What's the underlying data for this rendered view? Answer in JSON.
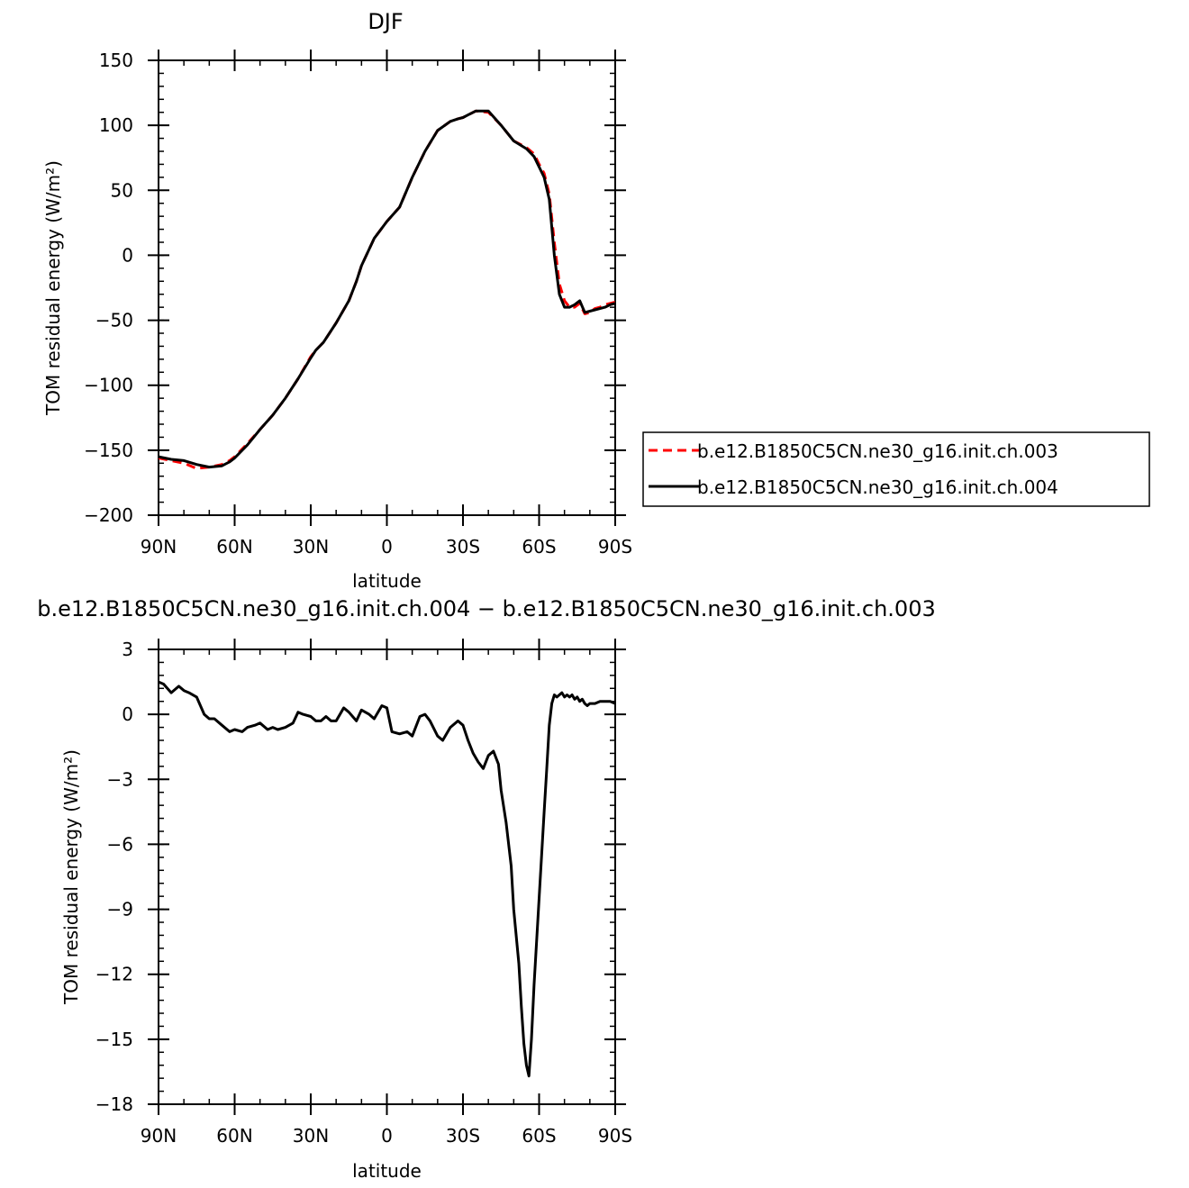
{
  "chart_data": [
    {
      "type": "line",
      "title": "DJF",
      "xlabel": "latitude",
      "ylabel": "TOM residual energy (W/m²)",
      "xlim": [
        90,
        -90
      ],
      "ylim": [
        -200,
        150
      ],
      "x_ticks": [
        {
          "value": 90,
          "label": "90N"
        },
        {
          "value": 60,
          "label": "60N"
        },
        {
          "value": 30,
          "label": "30N"
        },
        {
          "value": 0,
          "label": "0"
        },
        {
          "value": -30,
          "label": "30S"
        },
        {
          "value": -60,
          "label": "60S"
        },
        {
          "value": -90,
          "label": "90S"
        }
      ],
      "y_ticks": [
        {
          "value": 150,
          "label": "150"
        },
        {
          "value": 100,
          "label": "100"
        },
        {
          "value": 50,
          "label": "50"
        },
        {
          "value": 0,
          "label": "0"
        },
        {
          "value": -50,
          "label": "−50"
        },
        {
          "value": -100,
          "label": "−100"
        },
        {
          "value": -150,
          "label": "−150"
        },
        {
          "value": -200,
          "label": "−200"
        }
      ],
      "legend_position": "right",
      "series": [
        {
          "name": "b.e12.B1850C5CN.ne30_g16.init.ch.003",
          "color": "#ff0000",
          "dash": "dashed",
          "x": [
            90,
            85,
            80,
            75,
            70,
            65,
            62,
            60,
            55,
            50,
            45,
            40,
            35,
            30,
            28,
            25,
            20,
            15,
            12,
            10,
            5,
            0,
            -5,
            -10,
            -15,
            -20,
            -25,
            -28,
            -30,
            -32,
            -35,
            -40,
            -45,
            -50,
            -55,
            -58,
            -60,
            -62,
            -64,
            -66,
            -68,
            -70,
            -72,
            -74,
            -76,
            -78,
            -80,
            -82,
            -84,
            -86,
            -88,
            -90
          ],
          "y": [
            -156,
            -158,
            -160,
            -164,
            -163,
            -161,
            -158,
            -155,
            -145,
            -134,
            -123,
            -110,
            -95,
            -78,
            -73,
            -67,
            -52,
            -35,
            -20,
            -8,
            13,
            26,
            37,
            60,
            80,
            96,
            103,
            105,
            106,
            108,
            111,
            110,
            100,
            88,
            83,
            78,
            70,
            63,
            47,
            10,
            -22,
            -35,
            -40,
            -40,
            -37,
            -45,
            -44,
            -41,
            -40,
            -38,
            -37,
            -36
          ]
        },
        {
          "name": "b.e12.B1850C5CN.ne30_g16.init.ch.004",
          "color": "#000000",
          "dash": "solid",
          "x": [
            90,
            85,
            80,
            75,
            70,
            65,
            62,
            60,
            55,
            50,
            45,
            40,
            35,
            30,
            28,
            25,
            20,
            15,
            12,
            10,
            5,
            0,
            -5,
            -10,
            -15,
            -20,
            -25,
            -28,
            -30,
            -32,
            -35,
            -40,
            -45,
            -50,
            -55,
            -58,
            -60,
            -62,
            -64,
            -66,
            -68,
            -70,
            -72,
            -74,
            -76,
            -78,
            -80,
            -82,
            -84,
            -86,
            -88,
            -90
          ],
          "y": [
            -155,
            -157,
            -158,
            -161,
            -163,
            -162,
            -159,
            -156,
            -146,
            -134,
            -123,
            -110,
            -95,
            -79,
            -73,
            -67,
            -52,
            -35,
            -20,
            -8,
            13,
            26,
            37,
            60,
            80,
            96,
            103,
            105,
            106,
            108,
            111,
            111,
            100,
            88,
            82,
            76,
            68,
            60,
            43,
            0,
            -30,
            -40,
            -40,
            -38,
            -35,
            -44,
            -43,
            -42,
            -41,
            -40,
            -38,
            -37
          ]
        }
      ]
    },
    {
      "type": "line",
      "title": "b.e12.B1850C5CN.ne30_g16.init.ch.004 − b.e12.B1850C5CN.ne30_g16.init.ch.003",
      "xlabel": "latitude",
      "ylabel": "TOM residual energy (W/m²)",
      "xlim": [
        90,
        -90
      ],
      "ylim": [
        -18,
        3
      ],
      "x_ticks": [
        {
          "value": 90,
          "label": "90N"
        },
        {
          "value": 60,
          "label": "60N"
        },
        {
          "value": 30,
          "label": "30N"
        },
        {
          "value": 0,
          "label": "0"
        },
        {
          "value": -30,
          "label": "30S"
        },
        {
          "value": -60,
          "label": "60S"
        },
        {
          "value": -90,
          "label": "90S"
        }
      ],
      "y_ticks": [
        {
          "value": 3,
          "label": "3"
        },
        {
          "value": 0,
          "label": "0"
        },
        {
          "value": -3,
          "label": "−3"
        },
        {
          "value": -6,
          "label": "−6"
        },
        {
          "value": -9,
          "label": "−9"
        },
        {
          "value": -12,
          "label": "−12"
        },
        {
          "value": -15,
          "label": "−15"
        },
        {
          "value": -18,
          "label": "−18"
        }
      ],
      "series": [
        {
          "color": "#000000",
          "dash": "solid",
          "x": [
            90,
            88,
            85,
            82,
            80,
            78,
            75,
            72,
            70,
            68,
            65,
            62,
            60,
            57,
            55,
            52,
            50,
            47,
            45,
            43,
            40,
            37,
            35,
            33,
            30,
            28,
            26,
            24,
            22,
            20,
            17,
            15,
            12,
            10,
            7,
            5,
            2,
            0,
            -2,
            -5,
            -8,
            -10,
            -13,
            -15,
            -17,
            -20,
            -22,
            -25,
            -28,
            -30,
            -32,
            -34,
            -36,
            -38,
            -40,
            -42,
            -44,
            -45,
            -47,
            -49,
            -50,
            -52,
            -53,
            -54,
            -55,
            -56,
            -57,
            -58,
            -59,
            -60,
            -61,
            -62,
            -63,
            -64,
            -65,
            -66,
            -67,
            -68,
            -69,
            -70,
            -71,
            -72,
            -73,
            -74,
            -75,
            -76,
            -77,
            -78,
            -79,
            -80,
            -81,
            -82,
            -84,
            -86,
            -88,
            -90
          ],
          "y": [
            1.5,
            1.4,
            1.0,
            1.3,
            1.1,
            1.0,
            0.8,
            0.0,
            -0.2,
            -0.2,
            -0.5,
            -0.8,
            -0.7,
            -0.8,
            -0.6,
            -0.5,
            -0.4,
            -0.7,
            -0.6,
            -0.7,
            -0.6,
            -0.4,
            0.1,
            0.0,
            -0.1,
            -0.3,
            -0.3,
            -0.1,
            -0.3,
            -0.3,
            0.3,
            0.1,
            -0.3,
            0.2,
            0.0,
            -0.2,
            0.4,
            0.3,
            -0.8,
            -0.9,
            -0.8,
            -1.0,
            -0.1,
            0.0,
            -0.3,
            -1.0,
            -1.2,
            -0.6,
            -0.3,
            -0.5,
            -1.2,
            -1.8,
            -2.2,
            -2.5,
            -1.9,
            -1.7,
            -2.3,
            -3.5,
            -5.0,
            -7.0,
            -9.0,
            -11.5,
            -13.5,
            -15.2,
            -16.2,
            -16.7,
            -15.0,
            -12.5,
            -10.5,
            -8.5,
            -6.5,
            -4.5,
            -2.5,
            -0.5,
            0.5,
            0.9,
            0.8,
            0.9,
            1.0,
            0.8,
            0.9,
            0.8,
            0.9,
            0.7,
            0.8,
            0.6,
            0.7,
            0.5,
            0.4,
            0.5,
            0.5,
            0.5,
            0.6,
            0.6,
            0.6,
            0.5
          ]
        }
      ]
    }
  ]
}
